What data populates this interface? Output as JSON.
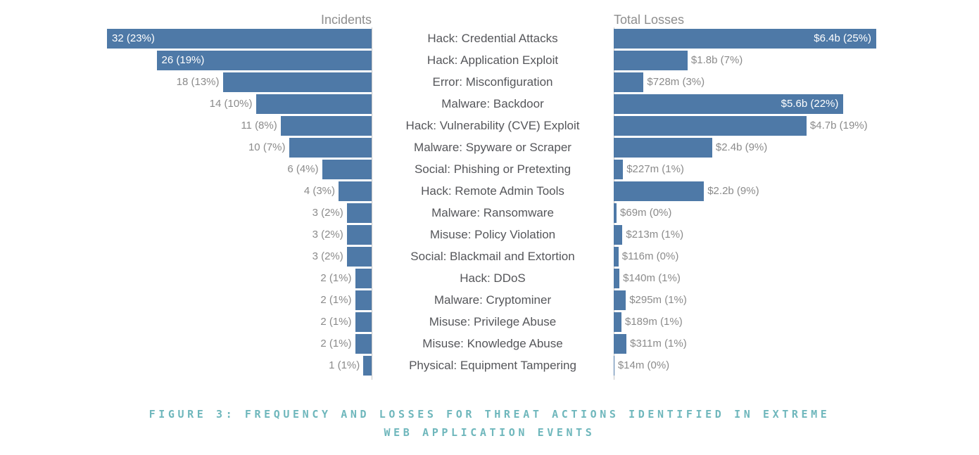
{
  "titles": {
    "left": "Incidents",
    "right": "Total Losses"
  },
  "caption": {
    "lines": [
      "FIGURE 3: FREQUENCY AND LOSSES FOR THREAT ACTIONS IDENTIFIED IN EXTREME",
      "WEB APPLICATION EVENTS"
    ]
  },
  "colors": {
    "bar": "#4e79a7",
    "value_label_outside": "#8b8b8b",
    "value_label_inside": "#ffffff",
    "category_label": "#55565a",
    "axis_title": "#8e8e8e",
    "axis_line": "#c6c6c6",
    "caption": "#6fb7bc",
    "background": "#ffffff"
  },
  "chart_data": {
    "type": "bar",
    "layout": "butterfly",
    "grid": false,
    "legend": false,
    "categories": [
      "Hack: Credential Attacks",
      "Hack: Application Exploit",
      "Error: Misconfiguration",
      "Malware: Backdoor",
      "Hack: Vulnerability (CVE) Exploit",
      "Malware: Spyware or Scraper",
      "Social: Phishing or Pretexting",
      "Hack: Remote Admin Tools",
      "Malware: Ransomware",
      "Misuse: Policy Violation",
      "Social: Blackmail and Extortion",
      "Hack: DDoS",
      "Malware: Cryptominer",
      "Misuse: Privilege Abuse",
      "Misuse: Knowledge Abuse",
      "Physical: Equipment Tampering"
    ],
    "series": [
      {
        "name": "Incidents",
        "side": "left",
        "direction": "right-to-left",
        "axis_max": 32,
        "values": [
          32,
          26,
          18,
          14,
          11,
          10,
          6,
          4,
          3,
          3,
          3,
          2,
          2,
          2,
          2,
          1
        ],
        "labels": [
          "32 (23%)",
          "26 (19%)",
          "18 (13%)",
          "14 (10%)",
          "11 (8%)",
          "10 (7%)",
          "6 (4%)",
          "4 (3%)",
          "3 (2%)",
          "3 (2%)",
          "3 (2%)",
          "2 (1%)",
          "2 (1%)",
          "2 (1%)",
          "2 (1%)",
          "1 (1%)"
        ],
        "labels_inside_rows": [
          0,
          1
        ]
      },
      {
        "name": "Total Losses",
        "side": "right",
        "direction": "left-to-right",
        "axis_max": 6.4,
        "values_busd": [
          6.4,
          1.8,
          0.728,
          5.6,
          4.7,
          2.4,
          0.227,
          2.2,
          0.069,
          0.213,
          0.116,
          0.14,
          0.295,
          0.189,
          0.311,
          0.014
        ],
        "labels": [
          "$6.4b (25%)",
          "$1.8b (7%)",
          "$728m (3%)",
          "$5.6b (22%)",
          "$4.7b (19%)",
          "$2.4b (9%)",
          "$227m (1%)",
          "$2.2b (9%)",
          "$69m (0%)",
          "$213m (1%)",
          "$116m (0%)",
          "$140m (1%)",
          "$295m (1%)",
          "$189m (1%)",
          "$311m (1%)",
          "$14m (0%)"
        ],
        "labels_inside_rows": [
          0,
          3
        ]
      }
    ]
  }
}
